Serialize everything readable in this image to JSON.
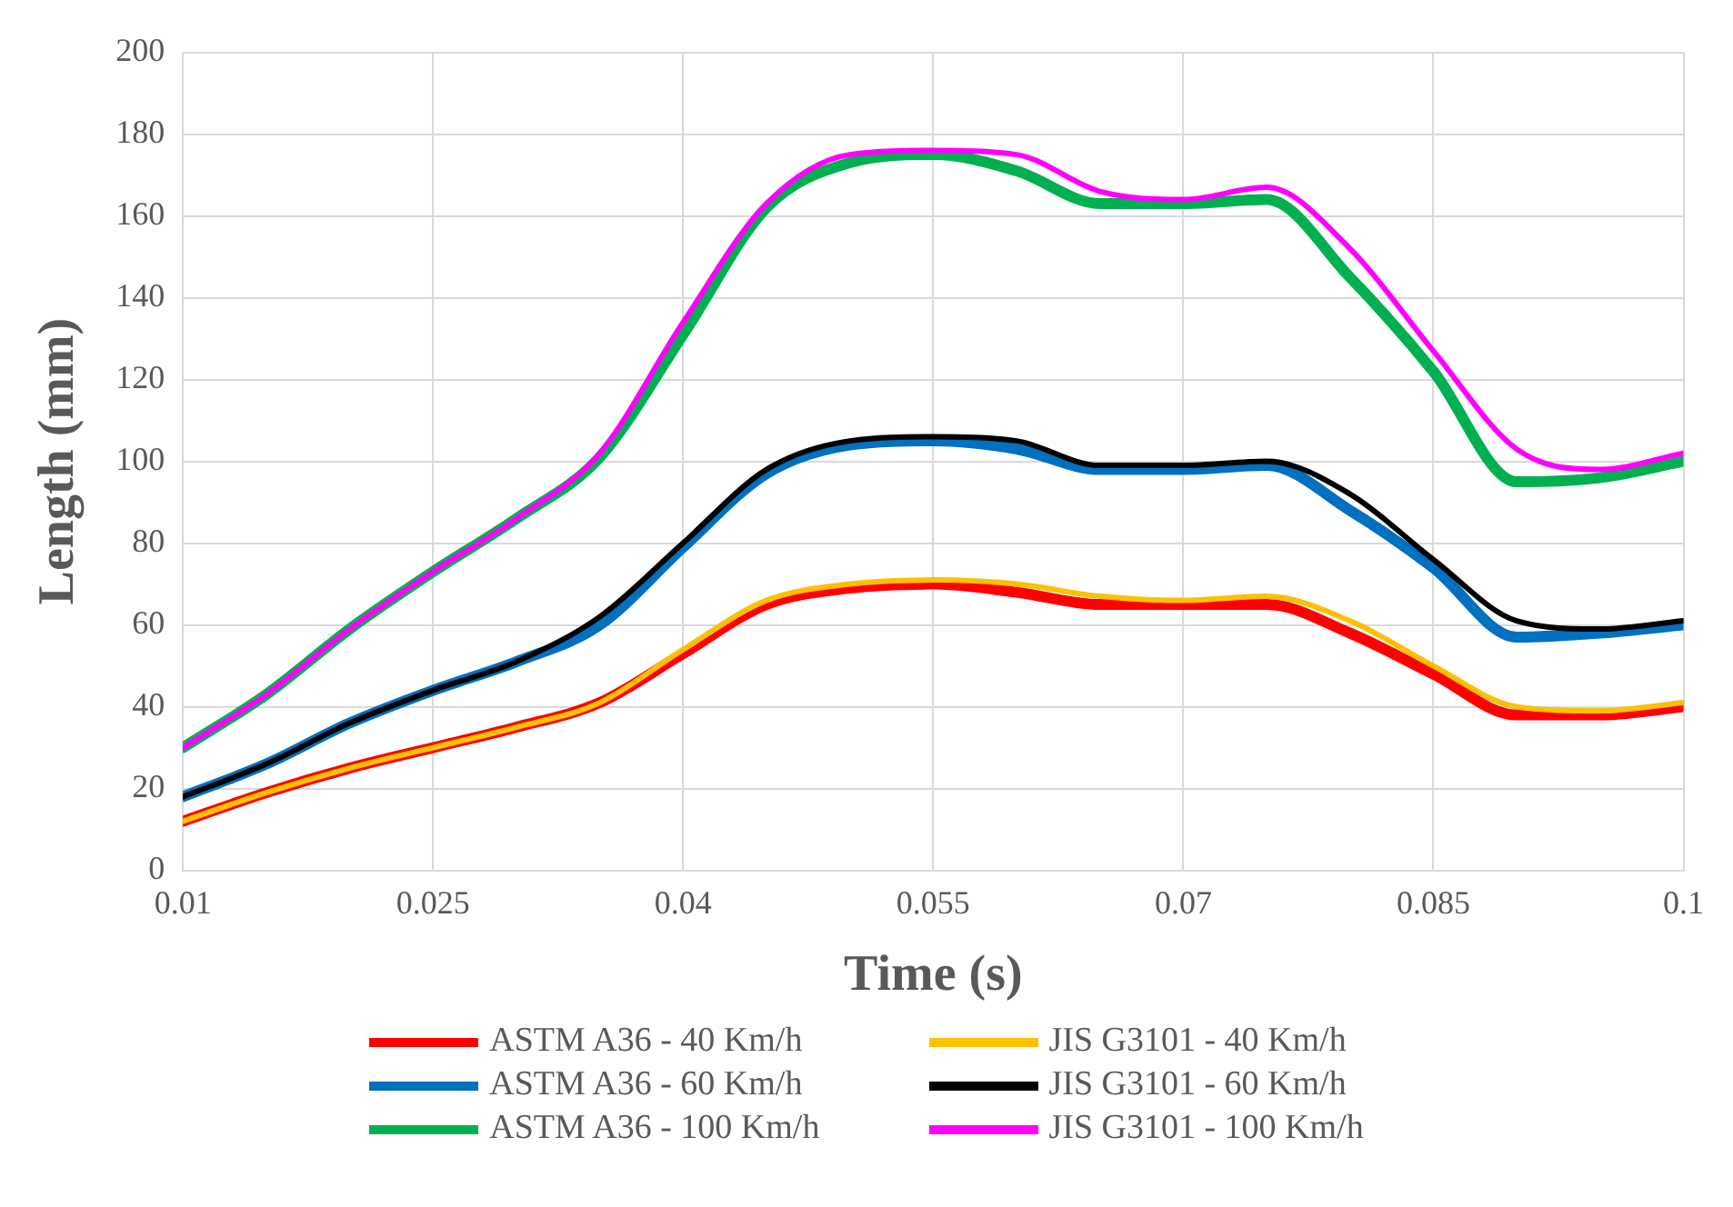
{
  "chart_data": {
    "type": "line",
    "xlabel": "Time (s)",
    "ylabel": "Length (mm)",
    "x": [
      0.01,
      0.015,
      0.02,
      0.025,
      0.03,
      0.035,
      0.04,
      0.045,
      0.05,
      0.055,
      0.06,
      0.065,
      0.07,
      0.075,
      0.08,
      0.085,
      0.09,
      0.095,
      0.1
    ],
    "xlim": [
      0.01,
      0.1
    ],
    "xticks": [
      0.01,
      0.025,
      0.04,
      0.055,
      0.07,
      0.085,
      0.1
    ],
    "ylim": [
      0,
      200
    ],
    "yticks": [
      0,
      20,
      40,
      60,
      80,
      100,
      120,
      140,
      160,
      180,
      200
    ],
    "grid": true,
    "legend": "bottom",
    "marker": "none",
    "line_style": "solid",
    "series": [
      {
        "name": "ASTM A36 - 40 Km/h",
        "color": "#ff0000",
        "values": [
          12,
          19,
          25,
          30,
          35,
          41,
          53,
          65,
          69,
          70,
          68,
          65,
          65,
          65,
          58,
          48,
          38,
          38,
          40
        ]
      },
      {
        "name": "JIS G3101 - 40 Km/h",
        "color": "#ffc000",
        "values": [
          12,
          19,
          25,
          30,
          35,
          41,
          54,
          66,
          70,
          71,
          70,
          67,
          66,
          67,
          61,
          50,
          40,
          39,
          41
        ]
      },
      {
        "name": "ASTM A36 - 60 Km/h",
        "color": "#0070c0",
        "values": [
          18,
          26,
          36,
          44,
          51,
          60,
          79,
          97,
          104,
          105,
          103,
          98,
          98,
          99,
          88,
          74,
          57,
          58,
          60
        ]
      },
      {
        "name": "JIS G3101 - 60 Km/h",
        "color": "#000000",
        "values": [
          18,
          26,
          36,
          44,
          51,
          62,
          80,
          98,
          105,
          106,
          105,
          99,
          99,
          100,
          92,
          76,
          61,
          59,
          61
        ]
      },
      {
        "name": "ASTM A36 - 100 Km/h",
        "color": "#00b050",
        "values": [
          30,
          43,
          59,
          73,
          86,
          101,
          131,
          162,
          173,
          175,
          171,
          163,
          163,
          164,
          145,
          122,
          95,
          96,
          100
        ]
      },
      {
        "name": "JIS G3101 - 100 Km/h",
        "color": "#ff00ff",
        "values": [
          30,
          43,
          59,
          73,
          86,
          102,
          134,
          163,
          175,
          176,
          175,
          166,
          164,
          167,
          152,
          127,
          103,
          98,
          102
        ]
      }
    ]
  }
}
